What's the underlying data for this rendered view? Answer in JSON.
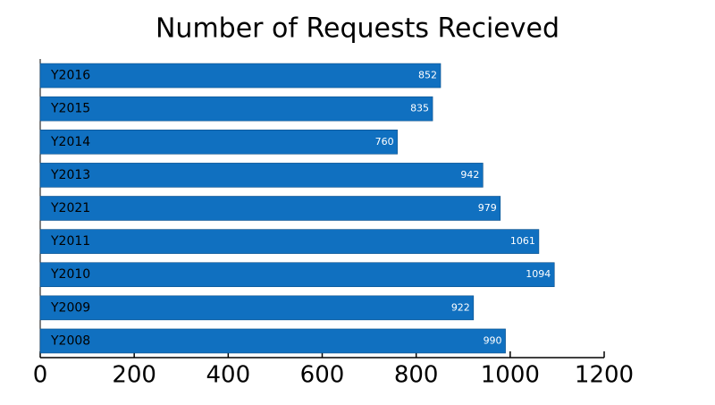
{
  "chart_data": {
    "type": "bar",
    "orientation": "horizontal",
    "title": "Number of Requests Recieved",
    "categories": [
      "Y2016",
      "Y2015",
      "Y2014",
      "Y2013",
      "Y2021",
      "Y2011",
      "Y2010",
      "Y2009",
      "Y2008"
    ],
    "values": [
      852,
      835,
      760,
      942,
      979,
      1061,
      1094,
      922,
      990
    ],
    "color": "#1070c0",
    "xlim": [
      0,
      1200
    ],
    "xticks": [
      0,
      200,
      400,
      600,
      800,
      1000,
      1200
    ]
  }
}
